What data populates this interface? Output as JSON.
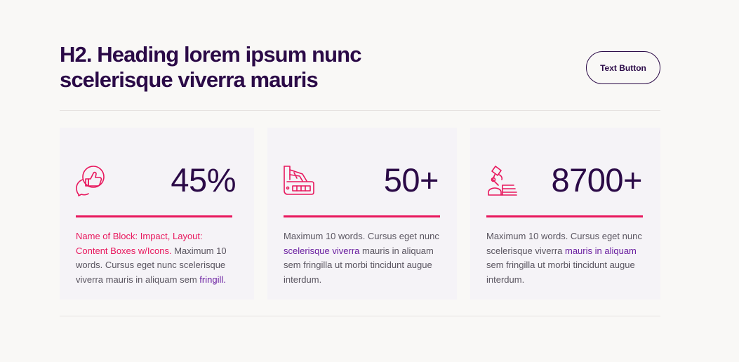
{
  "header": {
    "title": "H2. Heading lorem ipsum nunc scelerisque viverra mauris",
    "button_label": "Text Button"
  },
  "cards": [
    {
      "icon": "thumbs-up-speech-bubble-icon",
      "stat": "45%",
      "desc_pink": "Name of Block: Impact, Layout: Content Boxes w/Icons.",
      "desc_text": " Maximum 10 words. Cursus eget nunc scelerisque viverra mauris in aliquam sem ",
      "desc_link": "fringill."
    },
    {
      "icon": "color-swatch-fan-icon",
      "stat": "50+",
      "desc_pre": "Maximum 10 words. Cursus eget nunc ",
      "desc_link": "scelerisque viverra",
      "desc_post": " mauris in aliquam sem fringilla ut morbi tincidunt augue interdum."
    },
    {
      "icon": "desk-lamp-books-icon",
      "stat": "8700+",
      "desc_pre": "Maximum 10 words. Cursus eget nunc scelerisque viverra ",
      "desc_link": "mauris in aliquam",
      "desc_post": " sem fringilla ut morbi tincidunt augue interdum."
    }
  ],
  "colors": {
    "background": "#f9f8f6",
    "card_background": "#f5f3f7",
    "heading": "#2b0a47",
    "accent_pink": "#e8175d",
    "link_purple": "#6a1fa0",
    "body_text": "#5a5560"
  }
}
